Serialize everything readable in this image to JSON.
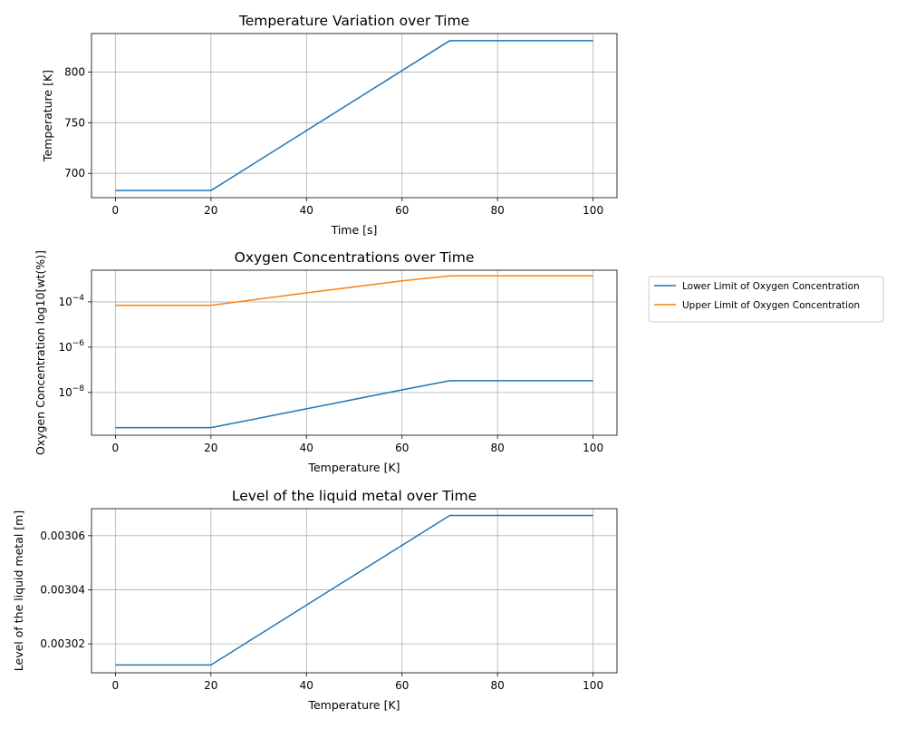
{
  "colors": {
    "blue": "#1f77b4",
    "orange": "#ff7f0e",
    "grid": "#b0b0b0",
    "axes": "#000000",
    "background": "#ffffff"
  },
  "chart_data": [
    {
      "type": "line",
      "title": "Temperature Variation over Time",
      "xlabel": "Time [s]",
      "ylabel": "Temperature [K]",
      "xlim": [
        -5,
        105
      ],
      "ylim": [
        676,
        838
      ],
      "xticks": [
        0,
        20,
        40,
        60,
        80,
        100
      ],
      "yticks": [
        700,
        750,
        800
      ],
      "y_scale": "linear",
      "grid": true,
      "series": [
        {
          "color": "#1f77b4",
          "x": [
            0,
            20,
            70,
            100
          ],
          "y": [
            683,
            683,
            831,
            831
          ]
        }
      ]
    },
    {
      "type": "line",
      "title": "Oxygen Concentrations over Time",
      "xlabel": "Temperature [K]",
      "ylabel": "Oxygen Concentration log10[wt(%)]",
      "xlim": [
        -5,
        105
      ],
      "ylim": [
        1.3e-10,
        0.0025
      ],
      "xticks": [
        0,
        20,
        40,
        60,
        80,
        100
      ],
      "yticks": [
        0.0001,
        1e-06,
        1e-08
      ],
      "ytick_labels": [
        {
          "base": "10",
          "exp": "−4"
        },
        {
          "base": "10",
          "exp": "−6"
        },
        {
          "base": "10",
          "exp": "−8"
        }
      ],
      "y_scale": "log",
      "grid": true,
      "legend_position": "outside-right",
      "series": [
        {
          "name": "Lower Limit of Oxygen Concentration",
          "color": "#1f77b4",
          "x": [
            0,
            20,
            40,
            60,
            70,
            100
          ],
          "y": [
            2.8e-10,
            2.8e-10,
            1.9e-09,
            1.3e-08,
            3.3e-08,
            3.3e-08
          ]
        },
        {
          "name": "Upper Limit of Oxygen Concentration",
          "color": "#ff7f0e",
          "x": [
            0,
            20,
            40,
            60,
            70,
            100
          ],
          "y": [
            7e-05,
            7e-05,
            0.00025,
            0.00085,
            0.0014,
            0.0014
          ]
        }
      ]
    },
    {
      "type": "line",
      "title": "Level of the liquid metal over Time",
      "xlabel": "Temperature [K]",
      "ylabel": "Level of the liquid metal [m]",
      "xlim": [
        -5,
        105
      ],
      "ylim": [
        0.0030093,
        0.00307
      ],
      "xticks": [
        0,
        20,
        40,
        60,
        80,
        100
      ],
      "yticks": [
        0.00302,
        0.00304,
        0.00306
      ],
      "ytick_labels": [
        "0.00302",
        "0.00304",
        "0.00306"
      ],
      "y_scale": "linear",
      "grid": true,
      "series": [
        {
          "color": "#1f77b4",
          "x": [
            0,
            20,
            70,
            100
          ],
          "y": [
            0.0030122,
            0.0030122,
            0.0030675,
            0.0030675
          ]
        }
      ]
    }
  ]
}
